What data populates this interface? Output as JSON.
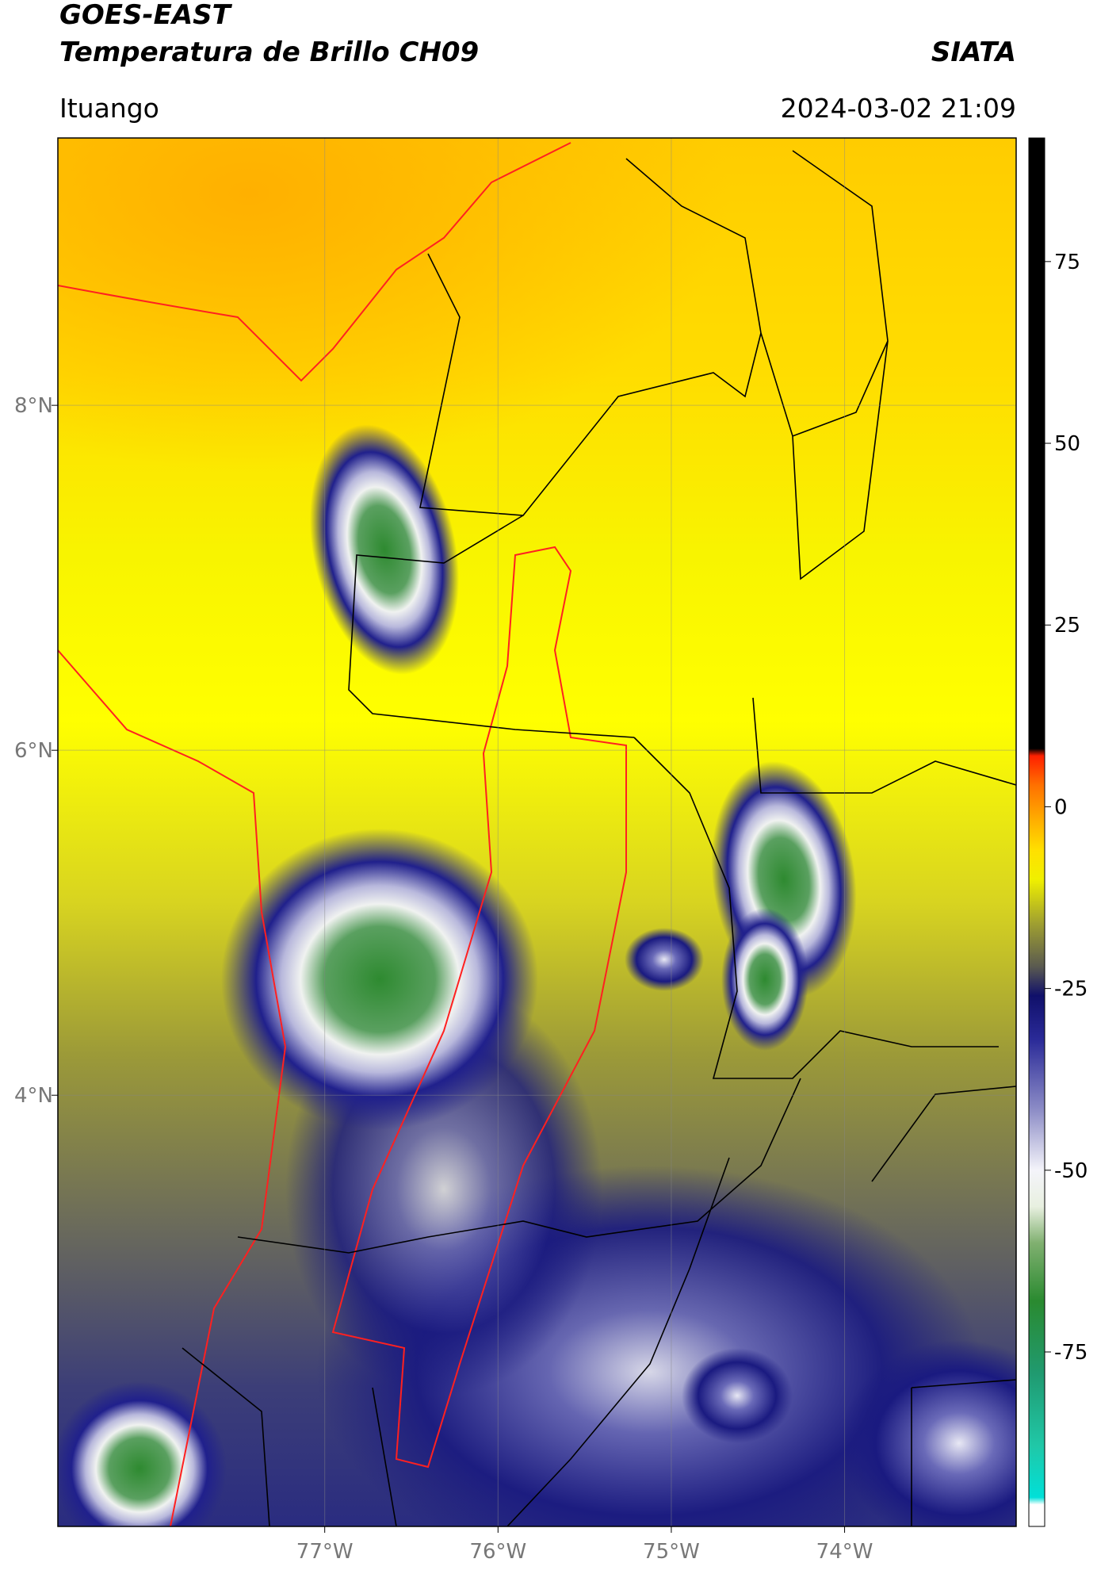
{
  "chart_data": {
    "type": "map",
    "title": "GOES-EAST",
    "subtitle": "Temperatura de Brillo CH09",
    "brand": "SIATA",
    "location": "Ituango",
    "timestamp": "2024-03-02 21:09",
    "xlim": [
      -78.54,
      -73.01
    ],
    "ylim": [
      1.5,
      9.55
    ],
    "xticks": [
      {
        "value": -77,
        "label": "77°W"
      },
      {
        "value": -76,
        "label": "76°W"
      },
      {
        "value": -75,
        "label": "75°W"
      },
      {
        "value": -74,
        "label": "74°W"
      }
    ],
    "yticks": [
      {
        "value": 4,
        "label": "4°N"
      },
      {
        "value": 6,
        "label": "6°N"
      },
      {
        "value": 8,
        "label": "8°N"
      }
    ],
    "grid": true,
    "colorbar": {
      "clim": [
        -99,
        92
      ],
      "ticks": [
        75,
        50,
        25,
        0,
        -25,
        -50,
        -75
      ],
      "colormap": [
        [
          -99,
          "#ffffff"
        ],
        [
          -96,
          "#ffffff"
        ],
        [
          -95,
          "#00e0d8"
        ],
        [
          -88,
          "#20c8a8"
        ],
        [
          -78,
          "#209a70"
        ],
        [
          -68,
          "#2a8a30"
        ],
        [
          -60,
          "#80b070"
        ],
        [
          -55,
          "#e8f0e0"
        ],
        [
          -50,
          "#f4f4fa"
        ],
        [
          -42,
          "#9090c8"
        ],
        [
          -32,
          "#2a2a98"
        ],
        [
          -26,
          "#10106a"
        ],
        [
          -22,
          "#5a5a50"
        ],
        [
          -16,
          "#a0a030"
        ],
        [
          -10,
          "#f0f000"
        ],
        [
          -6,
          "#ffe000"
        ],
        [
          -2,
          "#ffb000"
        ],
        [
          3,
          "#ff7000"
        ],
        [
          7,
          "#ff2000"
        ],
        [
          8,
          "#000000"
        ],
        [
          92,
          "#000000"
        ]
      ]
    }
  }
}
